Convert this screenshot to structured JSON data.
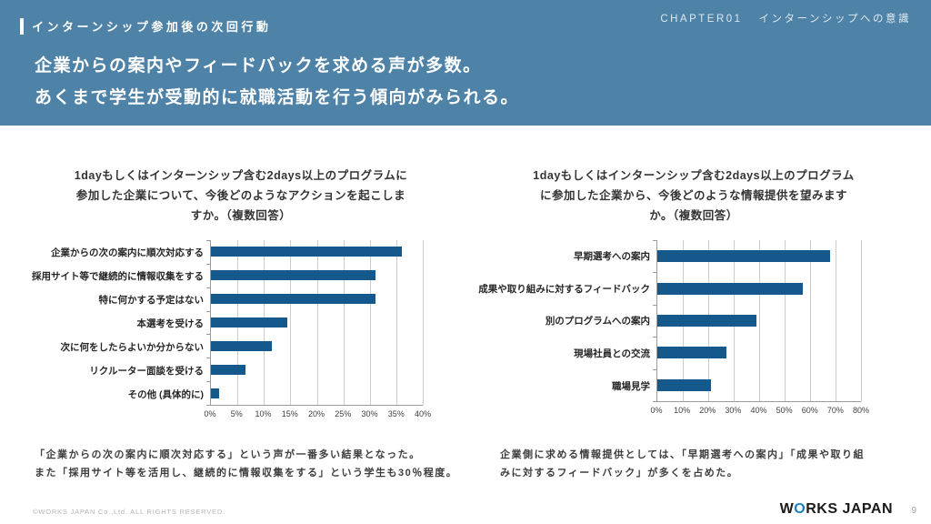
{
  "header": {
    "section_label": "インターンシップ参加後の次回行動",
    "chapter": "CHAPTER01",
    "chapter_title": "インターンシップへの意識",
    "headline_line1": "企業からの案内やフィードバックを求める声が多数。",
    "headline_line2": "あくまで学生が受動的に就職活動を行う傾向がみられる。",
    "background_color": "#4e82a7"
  },
  "chart_data": [
    {
      "type": "bar",
      "orientation": "horizontal",
      "title": "1dayもしくはインターンシップ含む2days以上のプログラムに参加した企業について、今後どのようなアクションを起こしますか。（複数回答）",
      "title_lines": [
        "1dayもしくはインターンシップ含む2days以上のプログラムに",
        "参加した企業について、今後どのようなアクションを起こしま",
        "すか。（複数回答）"
      ],
      "categories": [
        "企業からの次の案内に順次対応する",
        "採用サイト等で継続的に情報収集をする",
        "特に何かする予定はない",
        "本選考を受ける",
        "次に何をしたらよいか分からない",
        "リクルーター面談を受ける",
        "その他 (具体的に)"
      ],
      "values": [
        36,
        31,
        31,
        14.5,
        11.5,
        6.5,
        1.5
      ],
      "xlim": [
        0,
        40
      ],
      "tick_step": 5,
      "tick_labels": [
        "0%",
        "5%",
        "10%",
        "15%",
        "20%",
        "25%",
        "30%",
        "35%",
        "40%"
      ],
      "grid": true,
      "legend": "none",
      "bar_color": "#14588c",
      "caption_lines": [
        "「企業からの次の案内に順次対応する」という声が一番多い結果となった。",
        "また「採用サイト等を活用し、継続的に情報収集をする」という学生も30％程度。"
      ]
    },
    {
      "type": "bar",
      "orientation": "horizontal",
      "title": "1dayもしくはインターンシップ含む2days以上のプログラムに参加した企業から、今後どのような情報提供を望みますか。（複数回答）",
      "title_lines": [
        "1dayもしくはインターンシップ含む2days以上のプログラム",
        "に参加した企業から、今後どのような情報提供を望みます",
        "か。（複数回答）"
      ],
      "categories": [
        "早期選考への案内",
        "成果や取り組みに対するフィードバック",
        "別のプログラムへの案内",
        "現場社員との交流",
        "職場見学"
      ],
      "values": [
        68,
        57,
        39,
        27,
        21
      ],
      "xlim": [
        0,
        80
      ],
      "tick_step": 10,
      "tick_labels": [
        "0%",
        "10%",
        "20%",
        "30%",
        "40%",
        "50%",
        "60%",
        "70%",
        "80%"
      ],
      "grid": true,
      "legend": "none",
      "bar_color": "#14588c",
      "caption_lines": [
        "企業側に求める情報提供としては、「早期選考への案内」「成果や取り組",
        "みに対するフィードバック」が多くを占めた。"
      ]
    }
  ],
  "footer": {
    "copyright": "©WORKS JAPAN Co.,Ltd. ALL RIGHTS RESERVED.",
    "logo": {
      "part1": "W",
      "accent": "O",
      "part2": "RKS JAPAN"
    },
    "page_number": "9"
  }
}
